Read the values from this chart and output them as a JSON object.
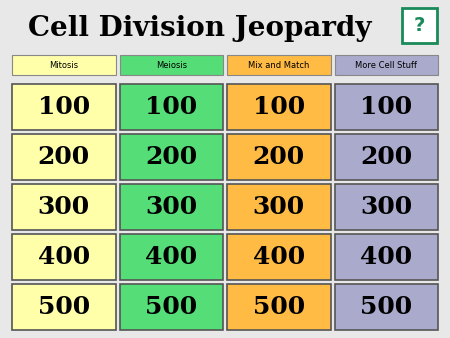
{
  "title": "Cell Division Jeopardy",
  "title_fontsize": 20,
  "bg_color": "#e8e8e8",
  "categories": [
    "Mitosis",
    "Meiosis",
    "Mix and Match",
    "More Cell Stuff"
  ],
  "cat_colors": [
    "#ffffaa",
    "#55dd77",
    "#ffbb44",
    "#aaaacc"
  ],
  "cell_colors": [
    "#ffffaa",
    "#55dd77",
    "#ffbb44",
    "#aaaacc"
  ],
  "values": [
    100,
    200,
    300,
    400,
    500
  ],
  "question_icon_color": "#1a8a5a",
  "question_icon_bg": "#ffffff",
  "num_cols": 4,
  "num_rows": 5,
  "cell_value_fontsize": 18,
  "cat_fontsize": 6
}
